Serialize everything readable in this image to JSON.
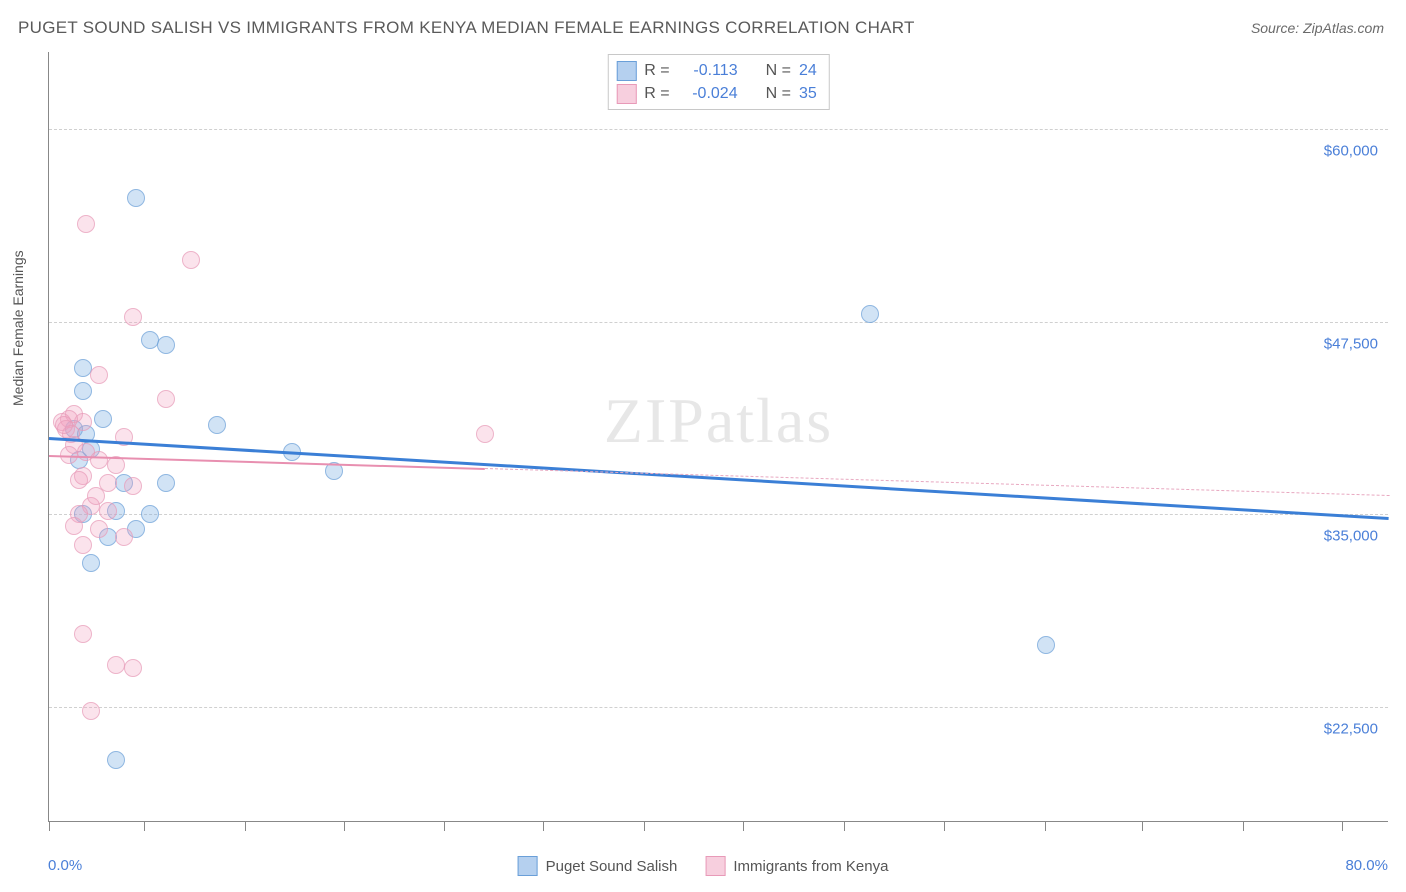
{
  "title": "PUGET SOUND SALISH VS IMMIGRANTS FROM KENYA MEDIAN FEMALE EARNINGS CORRELATION CHART",
  "source": "Source: ZipAtlas.com",
  "ylabel": "Median Female Earnings",
  "watermark": "ZIPatlas",
  "chart": {
    "type": "scatter",
    "xlim": [
      0,
      80
    ],
    "ylim": [
      15000,
      65000
    ],
    "x_axis": {
      "ticks_pct": [
        0,
        7.1,
        14.6,
        22.0,
        29.5,
        36.9,
        44.4,
        51.8,
        59.3,
        66.8,
        74.3,
        81.6,
        89.1,
        96.5
      ],
      "min_label": "0.0%",
      "max_label": "80.0%"
    },
    "y_gridlines": [
      {
        "value": 22500,
        "label": "$22,500"
      },
      {
        "value": 35000,
        "label": "$35,000"
      },
      {
        "value": 47500,
        "label": "$47,500"
      },
      {
        "value": 60000,
        "label": "$60,000"
      }
    ],
    "background_color": "#ffffff",
    "grid_color": "#d0d0d0",
    "axis_color": "#888888",
    "tick_label_color": "#4a7fd8",
    "series": [
      {
        "name": "Puget Sound Salish",
        "color_fill": "rgba(120,170,225,0.45)",
        "color_stroke": "#6a9fd8",
        "trend_color": "#3b7fd6",
        "R": "-0.113",
        "N": "24",
        "trend": {
          "x1": 0,
          "y1": 40000,
          "x2": 80,
          "y2": 34800,
          "dashed_from": null
        },
        "points": [
          [
            5.2,
            55500
          ],
          [
            2.0,
            44500
          ],
          [
            6.0,
            46300
          ],
          [
            7.0,
            46000
          ],
          [
            10.0,
            40800
          ],
          [
            3.2,
            41200
          ],
          [
            2.0,
            43000
          ],
          [
            1.5,
            40500
          ],
          [
            14.5,
            39000
          ],
          [
            4.5,
            37000
          ],
          [
            7.0,
            37000
          ],
          [
            4.0,
            35200
          ],
          [
            2.0,
            35000
          ],
          [
            5.2,
            34000
          ],
          [
            6.0,
            35000
          ],
          [
            17.0,
            37800
          ],
          [
            49.0,
            48000
          ],
          [
            59.5,
            26500
          ],
          [
            2.5,
            31800
          ],
          [
            4.0,
            19000
          ],
          [
            1.8,
            38500
          ],
          [
            2.5,
            39200
          ],
          [
            3.5,
            33500
          ],
          [
            2.2,
            40200
          ]
        ]
      },
      {
        "name": "Immigrants from Kenya",
        "color_fill": "rgba(240,160,190,0.40)",
        "color_stroke": "#e89ab8",
        "trend_color": "#e88fb0",
        "R": "-0.024",
        "N": "35",
        "trend": {
          "x1": 0,
          "y1": 38800,
          "x2": 80,
          "y2": 36200,
          "dashed_from": 26
        },
        "points": [
          [
            2.2,
            53800
          ],
          [
            8.5,
            51500
          ],
          [
            5.0,
            47800
          ],
          [
            3.0,
            44000
          ],
          [
            7.0,
            42500
          ],
          [
            1.5,
            41500
          ],
          [
            2.0,
            41000
          ],
          [
            1.2,
            41200
          ],
          [
            0.8,
            41000
          ],
          [
            1.0,
            40500
          ],
          [
            1.3,
            40200
          ],
          [
            0.9,
            40800
          ],
          [
            1.5,
            39500
          ],
          [
            2.2,
            39000
          ],
          [
            3.0,
            38500
          ],
          [
            4.0,
            38200
          ],
          [
            2.0,
            37500
          ],
          [
            3.5,
            37000
          ],
          [
            5.0,
            36800
          ],
          [
            2.5,
            35500
          ],
          [
            1.8,
            35000
          ],
          [
            3.0,
            34000
          ],
          [
            4.5,
            33500
          ],
          [
            2.0,
            33000
          ],
          [
            1.5,
            34200
          ],
          [
            3.5,
            35200
          ],
          [
            26.0,
            40200
          ],
          [
            2.0,
            27200
          ],
          [
            4.0,
            25200
          ],
          [
            5.0,
            25000
          ],
          [
            2.5,
            22200
          ],
          [
            4.5,
            40000
          ],
          [
            1.2,
            38800
          ],
          [
            1.8,
            37200
          ],
          [
            2.8,
            36200
          ]
        ]
      }
    ]
  },
  "stats_box": {
    "R_label": "R =",
    "N_label": "N ="
  },
  "legend": {
    "series1": "Puget Sound Salish",
    "series2": "Immigrants from Kenya"
  }
}
